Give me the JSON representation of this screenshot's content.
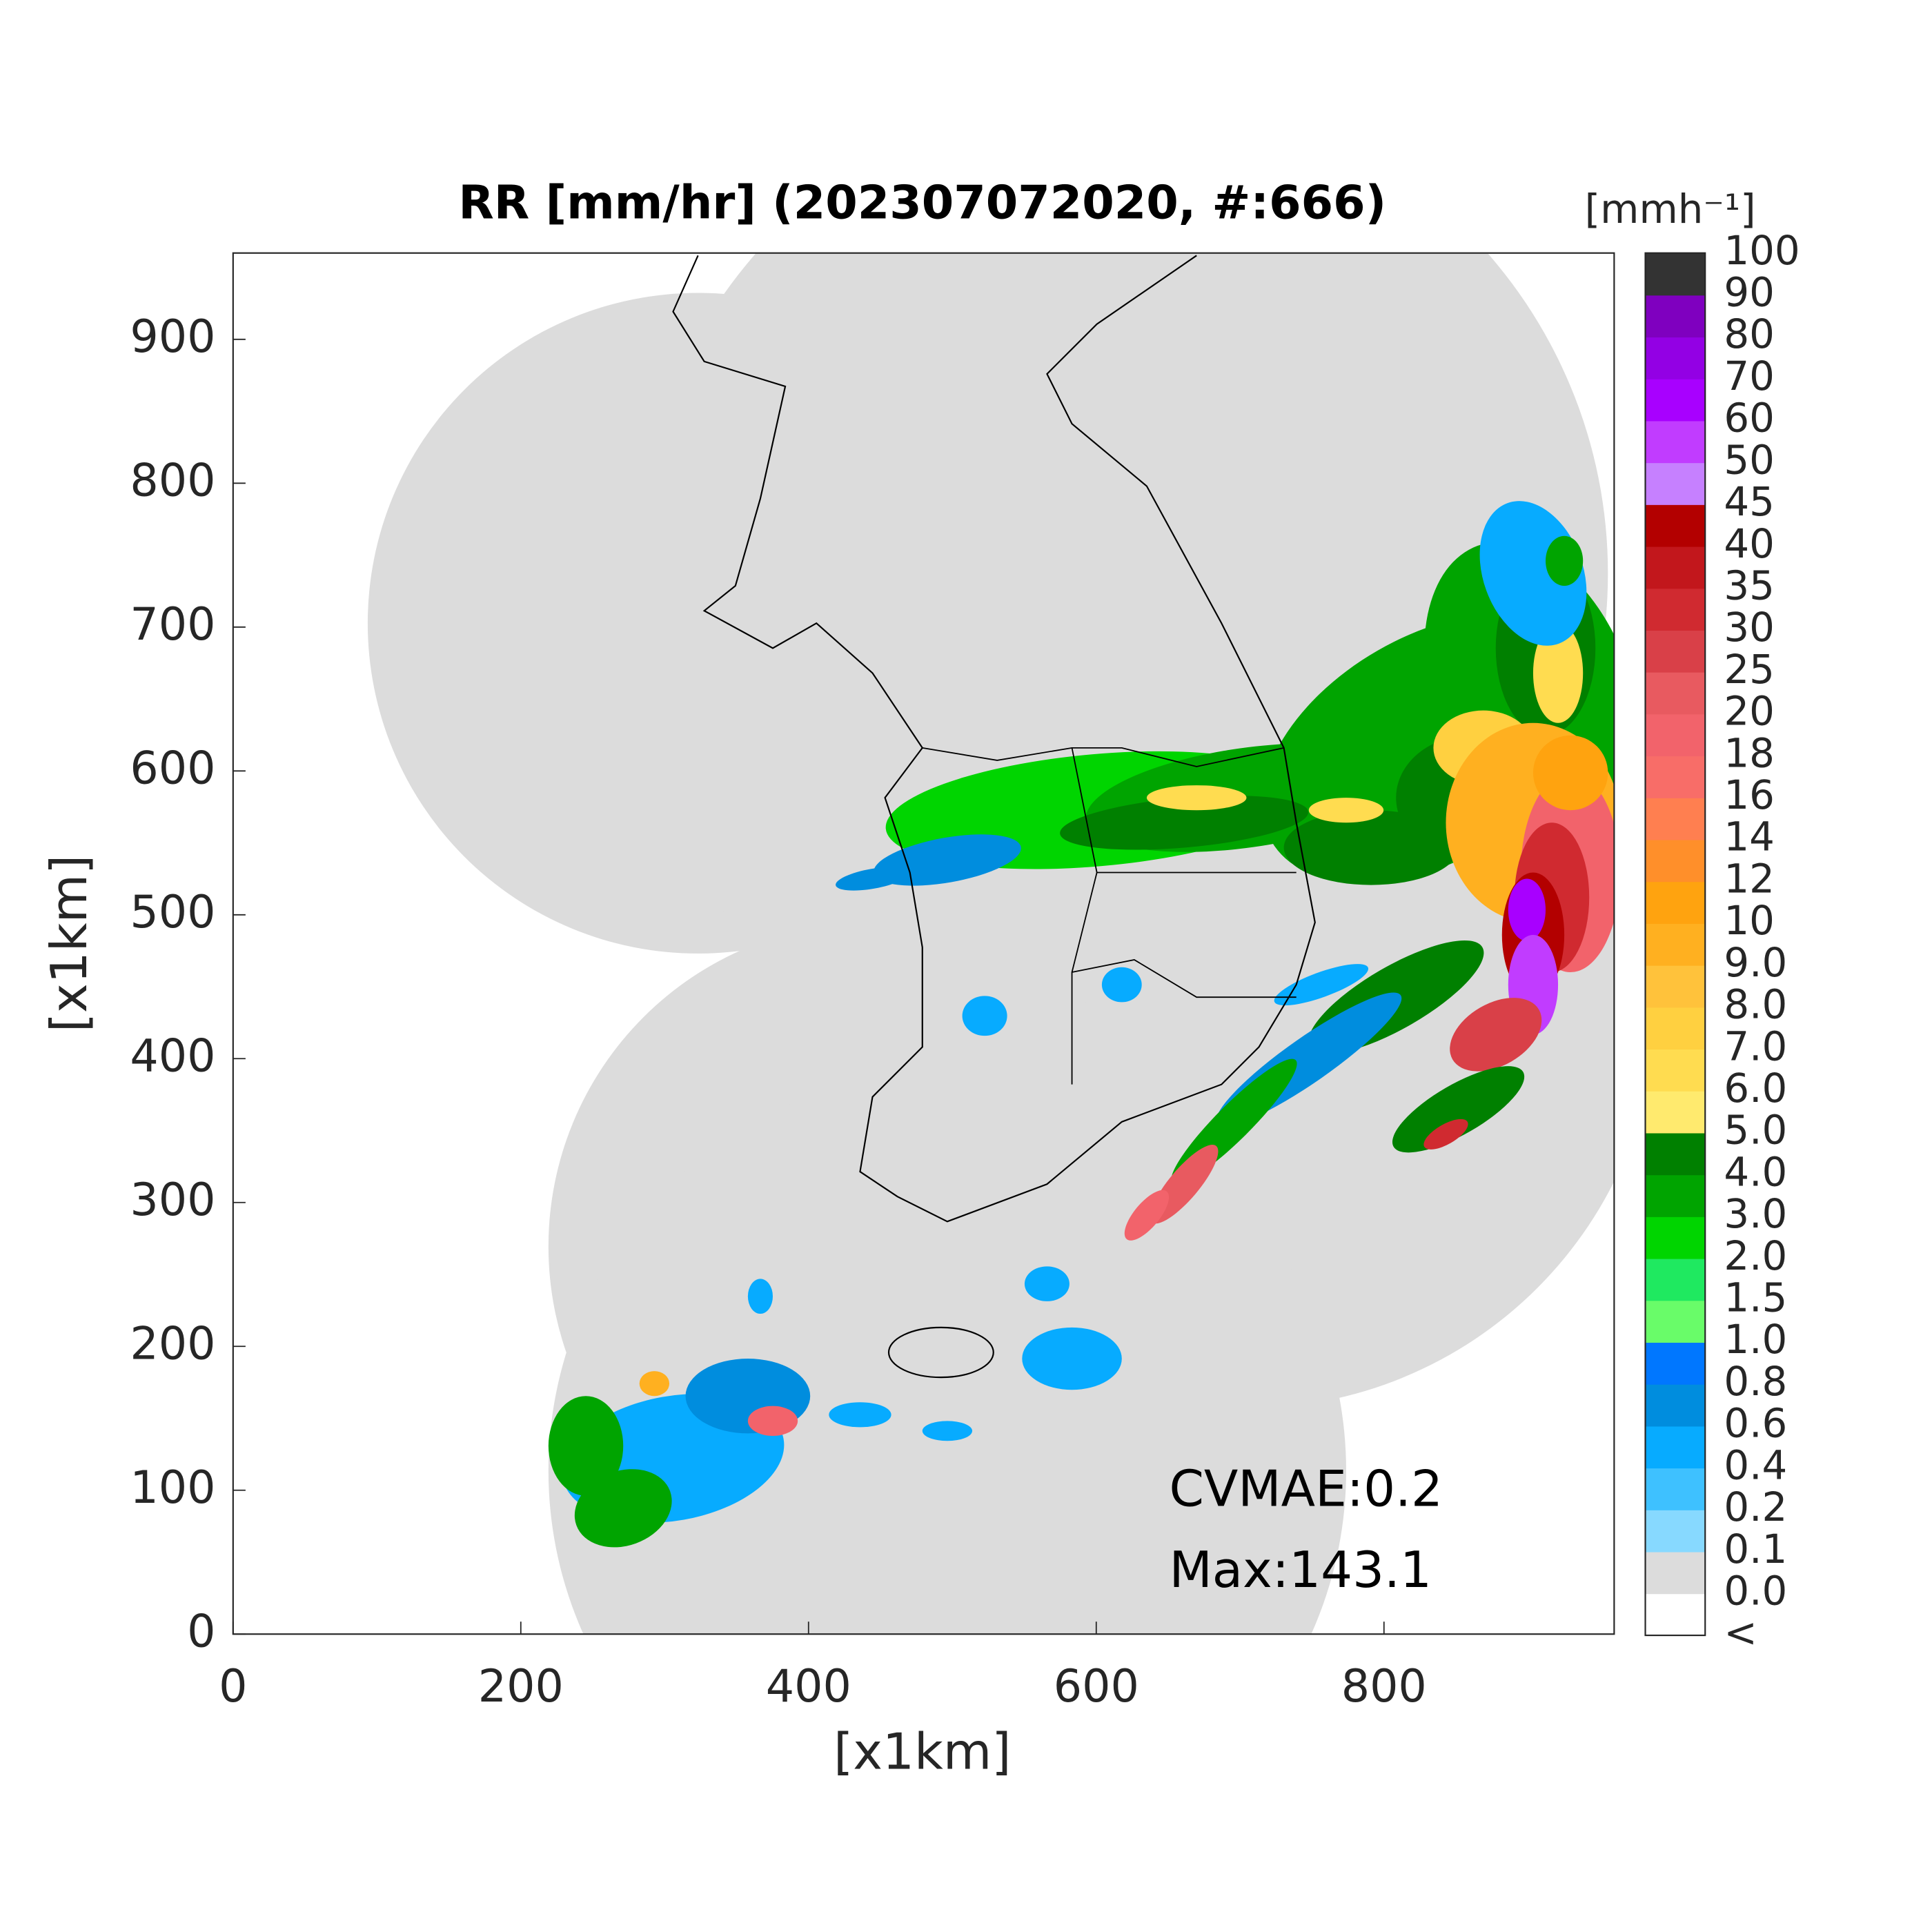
{
  "title": "RR [mm/hr] (202307072020, #:666)",
  "map": {
    "xlabel": "[x1km]",
    "ylabel": "[x1km]",
    "xlim": [
      0,
      960
    ],
    "ylim": [
      0,
      960
    ],
    "xticks": [
      0,
      200,
      400,
      600,
      800
    ],
    "yticks": [
      0,
      100,
      200,
      300,
      400,
      500,
      600,
      700,
      800,
      900
    ]
  },
  "colorbar": {
    "unit": "[mmh⁻¹]",
    "labels": [
      "<",
      "0.0",
      "0.1",
      "0.2",
      "0.4",
      "0.6",
      "0.8",
      "1.0",
      "1.5",
      "2.0",
      "3.0",
      "4.0",
      "5.0",
      "6.0",
      "7.0",
      "8.0",
      "9.0",
      "10",
      "12",
      "14",
      "16",
      "18",
      "20",
      "25",
      "30",
      "35",
      "40",
      "45",
      "50",
      "60",
      "70",
      "80",
      "90",
      "100"
    ],
    "colors": [
      "#ffffff",
      "#dcdcdc",
      "#87d9ff",
      "#3ec1ff",
      "#07abff",
      "#008dde",
      "#0077ff",
      "#69fc69",
      "#1fe960",
      "#00d500",
      "#00a400",
      "#008000",
      "#ffea6e",
      "#ffdc50",
      "#ffd040",
      "#ffc23b",
      "#ffb020",
      "#ffa30f",
      "#ff8f2a",
      "#ff7f50",
      "#f86d68",
      "#f2636b",
      "#e85a60",
      "#d94048",
      "#d02a30",
      "#c2171c",
      "#b30000",
      "#c680ff",
      "#c13cff",
      "#a800ff",
      "#9300e4",
      "#7f00bf",
      "#333333"
    ]
  },
  "annotations": [
    "CVMAE:0.2",
    "Max:143.1"
  ]
}
